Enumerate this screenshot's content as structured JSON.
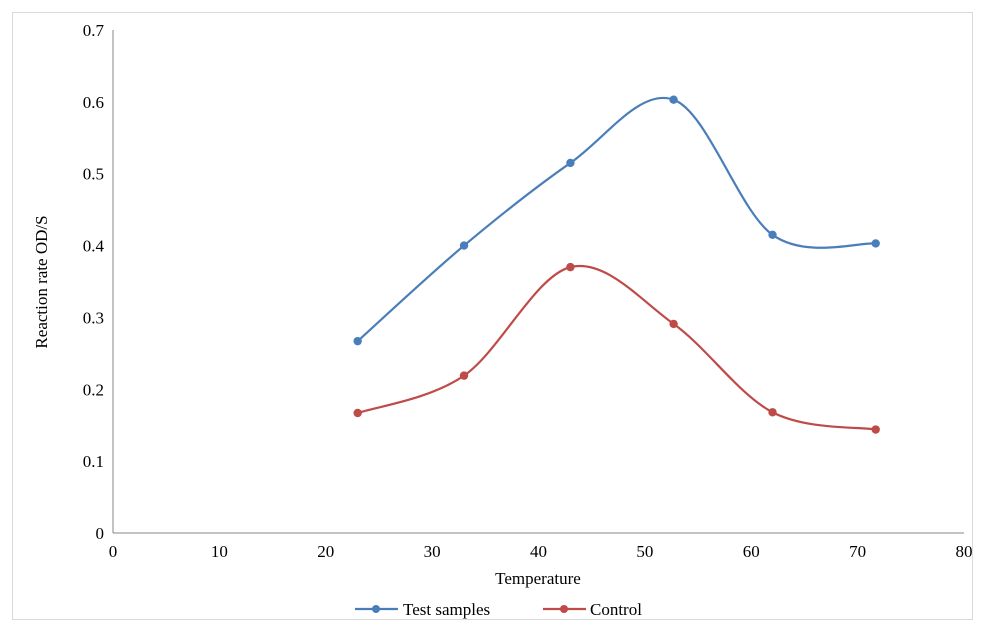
{
  "chart_data": {
    "type": "line",
    "title": "",
    "xlabel": "Temperature",
    "ylabel": "Reaction rate OD/S",
    "xlim": [
      0,
      80
    ],
    "ylim": [
      0,
      0.7
    ],
    "x_ticks": [
      "0",
      "10",
      "20",
      "30",
      "40",
      "50",
      "60",
      "70",
      "80"
    ],
    "y_ticks": [
      "0",
      "0.1",
      "0.2",
      "0.3",
      "0.4",
      "0.5",
      "0.6",
      "0.7"
    ],
    "grid": false,
    "smooth": true,
    "legend": "bottom",
    "series": [
      {
        "name": "Test samples",
        "color": "#4a7ebb",
        "x": [
          23,
          33,
          43,
          52.7,
          62,
          71.7
        ],
        "y": [
          0.267,
          0.4,
          0.515,
          0.603,
          0.415,
          0.403
        ]
      },
      {
        "name": "Control",
        "color": "#be4b48",
        "x": [
          23,
          33,
          43,
          52.7,
          62,
          71.7
        ],
        "y": [
          0.167,
          0.219,
          0.37,
          0.291,
          0.168,
          0.144
        ]
      }
    ]
  }
}
